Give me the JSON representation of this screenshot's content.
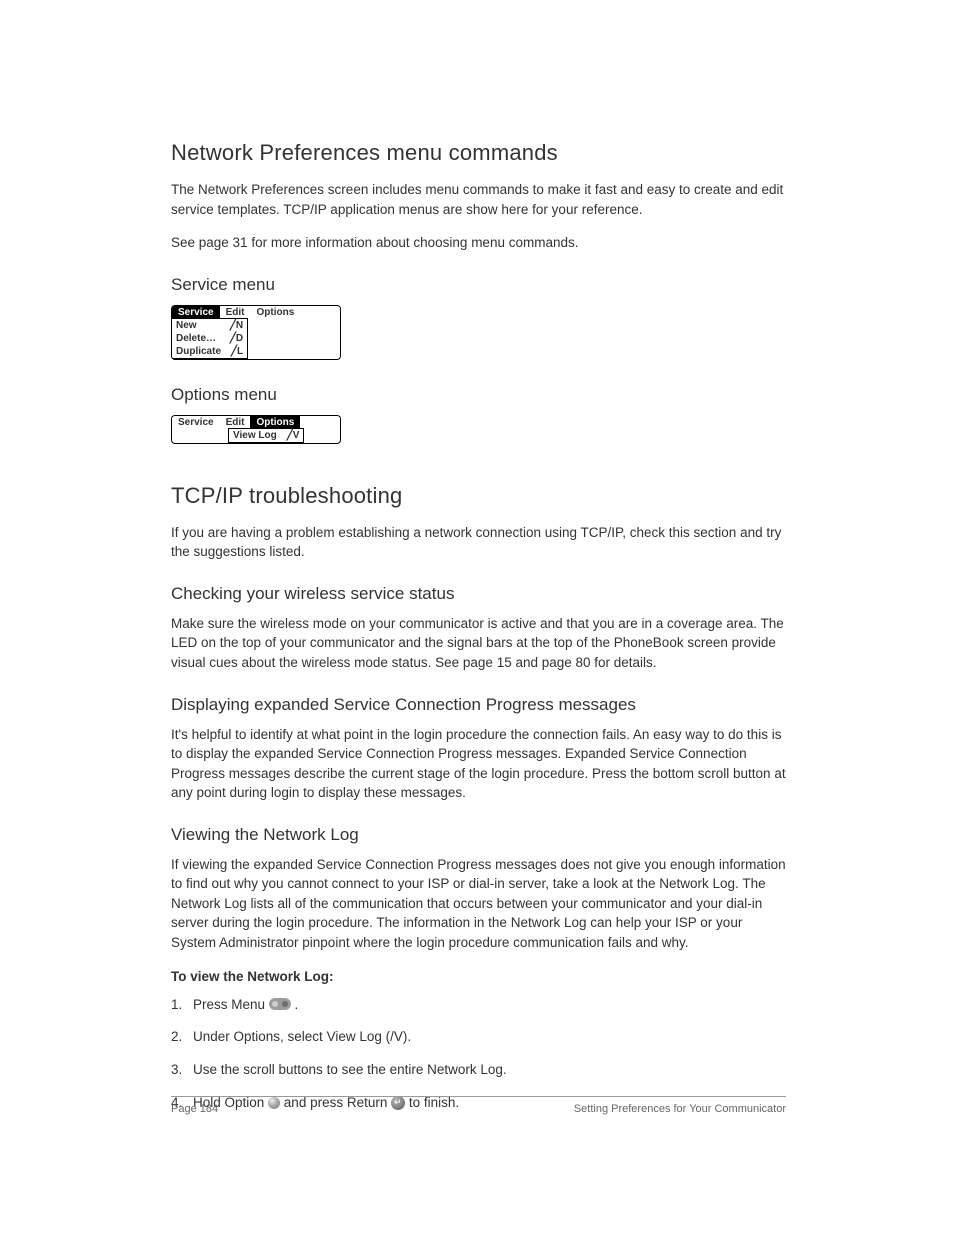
{
  "footer": {
    "page_label": "Page 184",
    "section_title": "Setting Preferences for Your Communicator"
  },
  "section1": {
    "title": "Network Preferences menu commands",
    "intro": "The Network Preferences screen includes menu commands to make it fast and easy to create and edit service templates. TCP/IP application menus are show here for your reference.",
    "see_also": "See page 31 for more information about choosing menu commands.",
    "service_menu": {
      "heading": "Service menu",
      "tabs": [
        "Service",
        "Edit",
        "Options"
      ],
      "active_tab_index": 0,
      "items": [
        {
          "label": "New",
          "shortcut": "╱N"
        },
        {
          "label": "Delete…",
          "shortcut": "╱D"
        },
        {
          "label": "Duplicate",
          "shortcut": "╱L"
        }
      ]
    },
    "options_menu": {
      "heading": "Options menu",
      "tabs": [
        "Service",
        "Edit",
        "Options"
      ],
      "active_tab_index": 2,
      "items": [
        {
          "label": "View Log",
          "shortcut": "╱V"
        }
      ]
    }
  },
  "section2": {
    "title": "TCP/IP troubleshooting",
    "intro": "If you are having a problem establishing a network connection using TCP/IP, check this section and try the suggestions listed.",
    "sub1": {
      "heading": "Checking your wireless service status",
      "body": "Make sure the wireless mode on your communicator is active and that you are in a coverage area. The LED on the top of your communicator and the signal bars at the top of the PhoneBook screen provide visual cues about the wireless mode status. See page 15 and page 80 for details."
    },
    "sub2": {
      "heading": "Displaying expanded Service Connection Progress messages",
      "body": "It's helpful to identify at what point in the login procedure the connection fails. An easy way to do this is to display the expanded Service Connection Progress messages. Expanded Service Connection Progress messages describe the current stage of the login procedure. Press the bottom scroll button at any point during login to display these messages."
    },
    "sub3": {
      "heading": "Viewing the Network Log",
      "body": "If viewing the expanded Service Connection Progress messages does not give you enough information to find out why you cannot connect to your ISP or dial-in server, take a look at the Network Log. The Network Log lists all of the communication that occurs between your communicator and your dial-in server during the login procedure. The information in the Network Log can help your ISP or your System Administrator pinpoint where the login procedure communication fails and why.",
      "steps_heading": "To view the Network Log:",
      "steps": {
        "s1a": "Press Menu ",
        "s1b": " .",
        "s2": "Under Options, select View Log (/V).",
        "s3": "Use the scroll buttons to see the entire Network Log.",
        "s4a": "Hold Option ",
        "s4b": " and press Return ",
        "s4c": " to finish."
      }
    }
  }
}
